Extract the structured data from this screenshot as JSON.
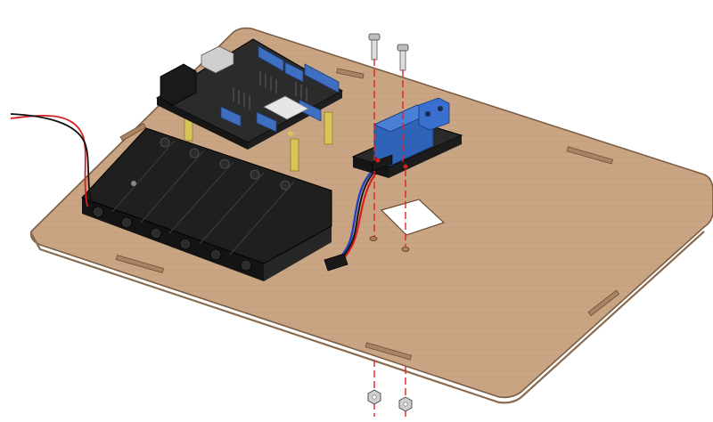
{
  "diagram": {
    "type": "exploded-assembly-view",
    "colors": {
      "board": "#c9a583",
      "board_edge": "#7a5d45",
      "arduino_pcb": "#2b2b2b",
      "header_blue": "#3f6fc1",
      "relay_blue": "#2f63b8",
      "standoff_brass": "#d9c45a",
      "battery_black": "#1f1f1f",
      "axis_line_red": "#e32222",
      "wire_red": "#d62020",
      "wire_blue": "#2040c0",
      "wire_black": "#111111"
    },
    "parts": [
      {
        "name": "acrylic-base-plate"
      },
      {
        "name": "arduino-sensor-shield"
      },
      {
        "name": "brass-standoffs",
        "count": 4
      },
      {
        "name": "6-cell-battery-holder"
      },
      {
        "name": "relay-module"
      },
      {
        "name": "screws",
        "count": 2
      },
      {
        "name": "nuts",
        "count": 2
      },
      {
        "name": "dupont-cable"
      }
    ]
  }
}
